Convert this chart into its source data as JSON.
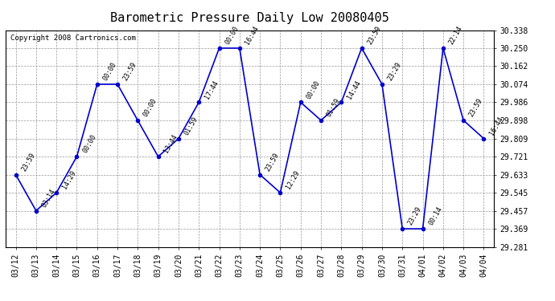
{
  "title": "Barometric Pressure Daily Low 20080405",
  "copyright": "Copyright 2008 Cartronics.com",
  "x_labels": [
    "03/12",
    "03/13",
    "03/14",
    "03/15",
    "03/16",
    "03/17",
    "03/18",
    "03/19",
    "03/20",
    "03/21",
    "03/22",
    "03/23",
    "03/24",
    "03/25",
    "03/26",
    "03/27",
    "03/28",
    "03/29",
    "03/30",
    "03/31",
    "04/01",
    "04/02",
    "04/03",
    "04/04"
  ],
  "y_values": [
    29.633,
    29.457,
    29.545,
    29.721,
    30.074,
    30.074,
    29.897,
    29.721,
    29.809,
    29.986,
    30.25,
    30.25,
    29.633,
    29.545,
    29.986,
    29.898,
    29.986,
    30.25,
    30.074,
    29.369,
    29.369,
    30.25,
    29.898,
    29.809
  ],
  "point_labels": [
    "23:59",
    "03:14",
    "14:29",
    "00:00",
    "00:00",
    "23:59",
    "00:00",
    "13:44",
    "01:59",
    "17:44",
    "00:00",
    "16:44",
    "23:59",
    "12:29",
    "00:00",
    "01:59",
    "14:44",
    "23:59",
    "23:29",
    "23:29",
    "00:14",
    "22:14",
    "23:59",
    "16:44"
  ],
  "ylim_min": 29.281,
  "ylim_max": 30.338,
  "yticks": [
    29.281,
    29.369,
    29.457,
    29.545,
    29.633,
    29.721,
    29.809,
    29.898,
    29.986,
    30.074,
    30.162,
    30.25,
    30.338
  ],
  "ytick_labels": [
    "29.281",
    "29.369",
    "29.457",
    "29.545",
    "29.633",
    "29.721",
    "29.809",
    "29.898",
    "29.986",
    "30.074",
    "30.162",
    "30.250",
    "30.338"
  ],
  "line_color": "#0000cc",
  "marker_color": "#0000cc",
  "background_color": "#ffffff",
  "grid_color": "#999999",
  "title_fontsize": 11,
  "label_fontsize": 7,
  "copyright_fontsize": 6.5
}
